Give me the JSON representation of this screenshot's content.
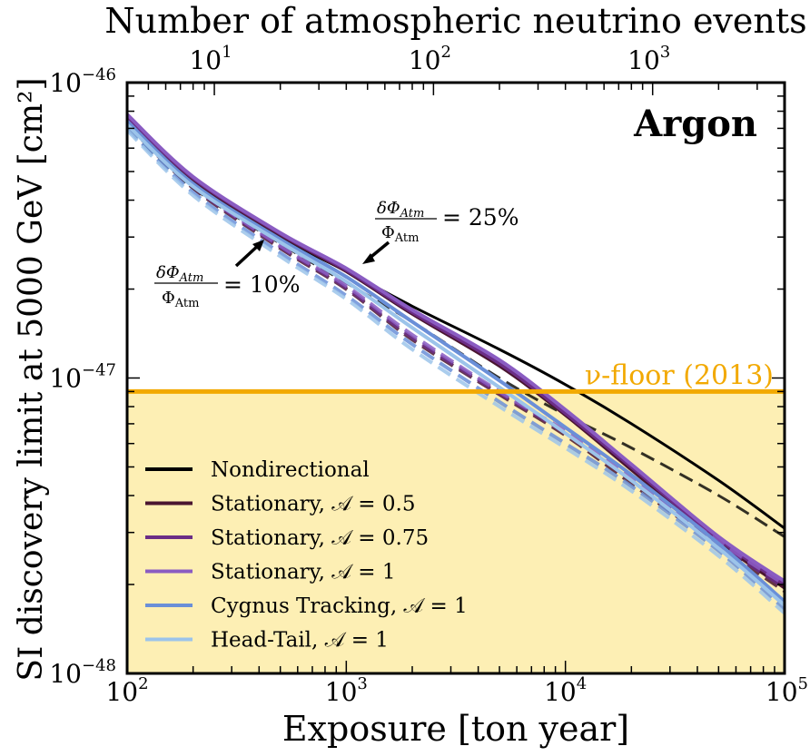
{
  "chart_data": {
    "type": "line",
    "title": "Argon",
    "xlabel": "Exposure [ton year]",
    "ylabel": "SI discovery limit at 5000 GeV [cm²]",
    "top_axis_label": "Number of atmospheric neutrino events",
    "xscale": "log",
    "yscale": "log",
    "xlim": [
      100,
      100000
    ],
    "ylim": [
      1e-48,
      1e-46
    ],
    "x_ticks": [
      {
        "value": 100,
        "base": "10",
        "exp": "2"
      },
      {
        "value": 1000,
        "base": "10",
        "exp": "3"
      },
      {
        "value": 10000,
        "base": "10",
        "exp": "4"
      },
      {
        "value": 100000,
        "base": "10",
        "exp": "5"
      }
    ],
    "y_ticks": [
      {
        "value": 1e-48,
        "base": "10",
        "exp": "−48"
      },
      {
        "value": 1e-47,
        "base": "10",
        "exp": "−47"
      },
      {
        "value": 1e-46,
        "base": "10",
        "exp": "−46"
      }
    ],
    "top_ticks": [
      {
        "exposure": 250,
        "base": "10",
        "exp": "1"
      },
      {
        "exposure": 2500,
        "base": "10",
        "exp": "2"
      },
      {
        "exposure": 25000,
        "base": "10",
        "exp": "3"
      }
    ],
    "neutrino_floor": {
      "label": "ν-floor (2013)",
      "value": 9e-48,
      "color": "#f2a900",
      "fill": "#fdefb4"
    },
    "legend_position": "lower-left",
    "series": [
      {
        "name": "Nondirectional",
        "color": "#000000",
        "x": [
          100,
          200,
          500,
          1000,
          2000,
          5000,
          10000,
          20000,
          50000,
          100000
        ],
        "solid": [
          7.2e-47,
          4.6e-47,
          3e-47,
          2.3e-47,
          1.75e-47,
          1.25e-47,
          9.5e-48,
          7e-48,
          4.5e-48,
          3.1e-48
        ],
        "dashed": [
          7e-47,
          4.4e-47,
          2.85e-47,
          2.1e-47,
          1.55e-47,
          1e-47,
          7.5e-48,
          5.8e-48,
          4e-48,
          2.9e-48
        ]
      },
      {
        "name": "Stationary, 𝒜 = 0.5",
        "color": "#4a1530",
        "x": [
          100,
          200,
          500,
          1000,
          2000,
          5000,
          10000,
          20000,
          50000,
          100000
        ],
        "solid": [
          7.6e-47,
          4.7e-47,
          3.05e-47,
          2.3e-47,
          1.65e-47,
          1.1e-47,
          7.5e-48,
          4.9e-48,
          2.8e-48,
          1.95e-48
        ],
        "dashed": [
          7.2e-47,
          4.4e-47,
          2.75e-47,
          2e-47,
          1.35e-47,
          8.8e-48,
          6.4e-48,
          4.4e-48,
          2.7e-48,
          1.9e-48
        ]
      },
      {
        "name": "Stationary, 𝒜 = 0.75",
        "color": "#6b2d86",
        "x": [
          100,
          200,
          500,
          1000,
          2000,
          5000,
          10000,
          20000,
          50000,
          100000
        ],
        "solid": [
          7.7e-47,
          4.75e-47,
          3.08e-47,
          2.32e-47,
          1.67e-47,
          1.12e-47,
          7.6e-48,
          5e-48,
          2.85e-48,
          2e-48
        ],
        "dashed": [
          7.3e-47,
          4.45e-47,
          2.78e-47,
          2.02e-47,
          1.37e-47,
          8.9e-48,
          6.5e-48,
          4.5e-48,
          2.75e-48,
          1.95e-48
        ]
      },
      {
        "name": "Stationary, 𝒜 = 1",
        "color": "#8a5cc2",
        "x": [
          100,
          200,
          500,
          1000,
          2000,
          5000,
          10000,
          20000,
          50000,
          100000
        ],
        "solid": [
          7.8e-47,
          4.8e-47,
          3.1e-47,
          2.35e-47,
          1.7e-47,
          1.15e-47,
          7.8e-48,
          5.1e-48,
          2.9e-48,
          2.05e-48
        ],
        "dashed": [
          7.4e-47,
          4.5e-47,
          2.8e-47,
          2.05e-47,
          1.4e-47,
          9e-48,
          6.6e-48,
          4.6e-48,
          2.8e-48,
          2e-48
        ]
      },
      {
        "name": "Cygnus Tracking, 𝒜 = 1",
        "color": "#6a8fd8",
        "x": [
          100,
          200,
          500,
          1000,
          2000,
          5000,
          10000,
          20000,
          50000,
          100000
        ],
        "solid": [
          7.4e-47,
          4.55e-47,
          2.95e-47,
          2.2e-47,
          1.55e-47,
          9.8e-48,
          6.8e-48,
          4.7e-48,
          2.75e-48,
          1.75e-48
        ],
        "dashed": [
          7e-47,
          4.25e-47,
          2.65e-47,
          1.9e-47,
          1.3e-47,
          8.3e-48,
          6e-48,
          4.3e-48,
          2.6e-48,
          1.65e-48
        ]
      },
      {
        "name": "Head-Tail, 𝒜 = 1",
        "color": "#9cc4ea",
        "x": [
          100,
          200,
          500,
          1000,
          2000,
          5000,
          10000,
          20000,
          50000,
          100000
        ],
        "solid": [
          7.2e-47,
          4.45e-47,
          2.88e-47,
          2.12e-47,
          1.48e-47,
          9.3e-48,
          6.5e-48,
          4.5e-48,
          2.65e-48,
          1.7e-48
        ],
        "dashed": [
          6.9e-47,
          4.15e-47,
          2.58e-47,
          1.85e-47,
          1.25e-47,
          8e-48,
          5.8e-48,
          4.15e-48,
          2.5e-48,
          1.6e-48
        ]
      }
    ],
    "annotations": [
      {
        "text_num": "δΦ",
        "text_num_sub": "Atm",
        "text_den": "Φ",
        "text_den_sub": "Atm",
        "text_rhs": "= 10%"
      },
      {
        "text_num": "δΦ",
        "text_num_sub": "Atm",
        "text_den": "Φ",
        "text_den_sub": "Atm",
        "text_rhs": "= 25%"
      }
    ]
  }
}
